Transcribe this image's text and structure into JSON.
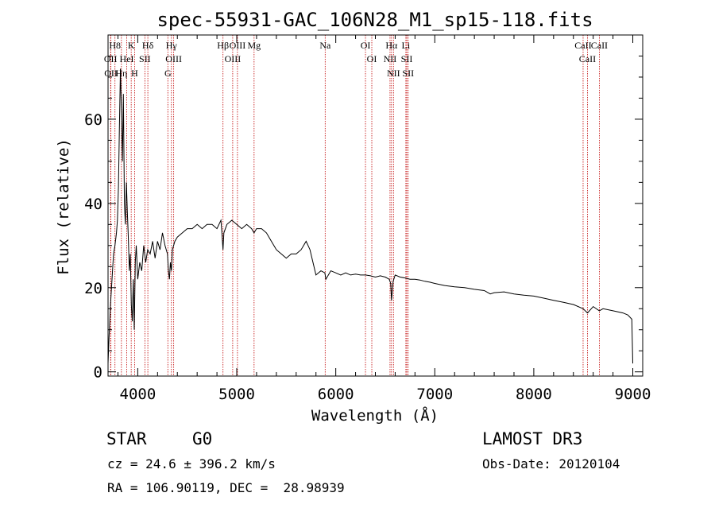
{
  "chart_data": {
    "type": "line",
    "title": "spec-55931-GAC_106N28_M1_sp15-118.fits",
    "xlabel": "Wavelength (Å)",
    "ylabel": "Flux (relative)",
    "xlim": [
      3700,
      9100
    ],
    "ylim": [
      -1,
      80
    ],
    "xticks": [
      4000,
      5000,
      6000,
      7000,
      8000,
      9000
    ],
    "yticks": [
      0,
      20,
      40,
      60
    ],
    "grid": false,
    "series": [
      {
        "name": "Flux",
        "x": [
          3700,
          3710,
          3725,
          3740,
          3755,
          3770,
          3785,
          3795,
          3805,
          3815,
          3825,
          3835,
          3845,
          3855,
          3865,
          3875,
          3885,
          3895,
          3905,
          3915,
          3925,
          3935,
          3945,
          3955,
          3965,
          3975,
          3985,
          4000,
          4020,
          4040,
          4060,
          4080,
          4100,
          4125,
          4150,
          4175,
          4200,
          4225,
          4250,
          4275,
          4300,
          4310,
          4320,
          4330,
          4340,
          4350,
          4375,
          4400,
          4450,
          4500,
          4550,
          4600,
          4650,
          4700,
          4750,
          4800,
          4840,
          4850,
          4861,
          4870,
          4900,
          4950,
          5000,
          5050,
          5100,
          5150,
          5175,
          5200,
          5250,
          5300,
          5350,
          5400,
          5450,
          5500,
          5550,
          5600,
          5650,
          5700,
          5720,
          5740,
          5760,
          5780,
          5800,
          5850,
          5890,
          5900,
          5950,
          6000,
          6050,
          6100,
          6150,
          6200,
          6250,
          6300,
          6350,
          6400,
          6450,
          6500,
          6540,
          6555,
          6563,
          6570,
          6580,
          6600,
          6650,
          6700,
          6750,
          6800,
          6850,
          6900,
          6950,
          7000,
          7100,
          7200,
          7300,
          7400,
          7500,
          7560,
          7600,
          7700,
          7800,
          7900,
          8000,
          8100,
          8200,
          8300,
          8400,
          8498,
          8542,
          8600,
          8662,
          8700,
          8800,
          8900,
          8950,
          8990,
          9000
        ],
        "values": [
          2,
          8,
          16,
          22,
          28,
          30,
          33,
          36,
          44,
          58,
          72,
          62,
          50,
          66,
          40,
          35,
          45,
          38,
          32,
          24,
          28,
          16,
          12,
          22,
          10,
          26,
          30,
          22,
          26,
          24,
          30,
          26,
          29,
          28,
          31,
          27,
          31,
          29,
          33,
          30,
          28,
          24,
          22,
          26,
          24,
          29,
          31,
          32,
          33,
          34,
          34,
          35,
          34,
          35,
          35,
          34,
          36,
          33,
          29,
          33,
          35,
          36,
          35,
          34,
          35,
          34,
          33,
          34,
          34,
          33,
          31,
          29,
          28,
          27,
          28,
          28,
          29,
          31,
          30,
          29,
          27,
          25,
          23,
          24,
          23.5,
          22,
          24,
          23.5,
          23,
          23.5,
          23,
          23.2,
          23,
          23,
          22.8,
          22.5,
          22.8,
          22.5,
          22,
          21,
          17,
          19,
          21.5,
          23,
          22.5,
          22.3,
          22,
          22,
          21.8,
          21.5,
          21.3,
          21,
          20.5,
          20.2,
          20,
          19.6,
          19.3,
          18.5,
          18.8,
          19,
          18.5,
          18.2,
          18,
          17.5,
          17,
          16.5,
          16,
          15,
          14,
          15.5,
          14.5,
          15,
          14.5,
          14,
          13.5,
          12.5,
          2
        ]
      }
    ],
    "line_labels": [
      {
        "w": 3770,
        "label": "H8"
      },
      {
        "w": 3726,
        "label": "OII"
      },
      {
        "w": 3729,
        "label": "OII"
      },
      {
        "w": 3835,
        "label": "Hη"
      },
      {
        "w": 3934,
        "label": "K"
      },
      {
        "w": 3889,
        "label": "HeI"
      },
      {
        "w": 3968,
        "label": "H"
      },
      {
        "w": 4072,
        "label": "SII"
      },
      {
        "w": 4102,
        "label": "Hδ"
      },
      {
        "w": 4340,
        "label": "Hγ"
      },
      {
        "w": 4363,
        "label": "OIII"
      },
      {
        "w": 4304,
        "label": "G"
      },
      {
        "w": 4861,
        "label": "Hβ"
      },
      {
        "w": 4959,
        "label": "OIII"
      },
      {
        "w": 5007,
        "label": "OIII"
      },
      {
        "w": 5175,
        "label": "Mg"
      },
      {
        "w": 5893,
        "label": "Na"
      },
      {
        "w": 6300,
        "label": "OI"
      },
      {
        "w": 6364,
        "label": "OI"
      },
      {
        "w": 6563,
        "label": "Hα"
      },
      {
        "w": 6548,
        "label": "NII"
      },
      {
        "w": 6583,
        "label": "NII"
      },
      {
        "w": 6708,
        "label": "Li"
      },
      {
        "w": 6717,
        "label": "SII"
      },
      {
        "w": 6731,
        "label": "SII"
      },
      {
        "w": 8498,
        "label": "CaII"
      },
      {
        "w": 8542,
        "label": "CaII"
      },
      {
        "w": 8662,
        "label": "CaII"
      }
    ]
  },
  "info": {
    "object_type": "STAR",
    "subclass": "G0",
    "survey": "LAMOST DR3",
    "redshift_line": "cz = 24.6 ± 396.2 km/s",
    "obs_date_line": "Obs-Date: 20120104",
    "coords_line": "RA = 106.90119, DEC =  28.98939"
  }
}
